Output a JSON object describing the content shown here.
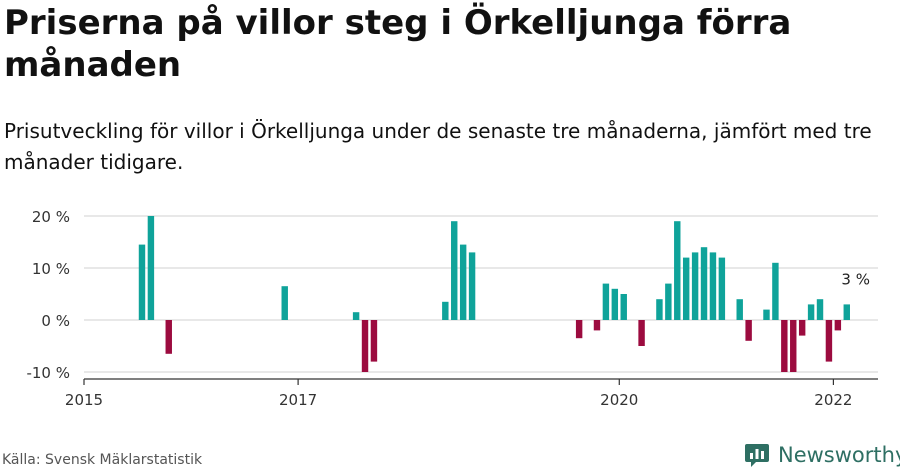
{
  "title": "Priserna på villor steg i Örkelljunga förra månaden",
  "subtitle": "Prisutveckling för villor i Örkelljunga under de senaste tre månaderna, jämfört med tre månader tidigare.",
  "source": "Källa: Svensk Mäklarstatistik",
  "brand": "Newsworthy",
  "colors": {
    "positive": "#0fa39a",
    "negative": "#9c0b3f",
    "grid": "#d9d9d9",
    "axis": "#333333",
    "brand": "#2e6f63"
  },
  "chart_data": {
    "type": "bar",
    "y_tick_labels": [
      "20 %",
      "10 %",
      "0 %",
      "-10 %"
    ],
    "y_ticks": [
      20,
      10,
      0,
      -10
    ],
    "ylim": [
      -10.5,
      20.5
    ],
    "x_tick_labels": [
      "2015",
      "2017",
      "2020",
      "2022"
    ],
    "x_ticks": [
      "2015-01",
      "2017-01",
      "2020-01",
      "2022-01"
    ],
    "xlim": [
      "2015-01",
      "2022-06"
    ],
    "annotation": {
      "text": "3 %",
      "x": "2022-03",
      "value": 3
    },
    "bars": [
      {
        "x": "2015-07",
        "value": 14.5
      },
      {
        "x": "2015-08",
        "value": 20
      },
      {
        "x": "2015-10",
        "value": -6.5
      },
      {
        "x": "2016-11",
        "value": 6.5
      },
      {
        "x": "2017-07",
        "value": 1.5
      },
      {
        "x": "2017-08",
        "value": -10
      },
      {
        "x": "2017-09",
        "value": -8
      },
      {
        "x": "2018-05",
        "value": 3.5
      },
      {
        "x": "2018-06",
        "value": 19
      },
      {
        "x": "2018-07",
        "value": 14.5
      },
      {
        "x": "2018-08",
        "value": 13
      },
      {
        "x": "2019-08",
        "value": -3.5
      },
      {
        "x": "2019-10",
        "value": -2
      },
      {
        "x": "2019-11",
        "value": 7
      },
      {
        "x": "2019-12",
        "value": 6
      },
      {
        "x": "2020-01",
        "value": 5
      },
      {
        "x": "2020-03",
        "value": -5
      },
      {
        "x": "2020-05",
        "value": 4
      },
      {
        "x": "2020-06",
        "value": 7
      },
      {
        "x": "2020-07",
        "value": 19
      },
      {
        "x": "2020-08",
        "value": 12
      },
      {
        "x": "2020-09",
        "value": 13
      },
      {
        "x": "2020-10",
        "value": 14
      },
      {
        "x": "2020-11",
        "value": 13
      },
      {
        "x": "2020-12",
        "value": 12
      },
      {
        "x": "2021-02",
        "value": 4
      },
      {
        "x": "2021-03",
        "value": -4
      },
      {
        "x": "2021-05",
        "value": 2
      },
      {
        "x": "2021-06",
        "value": 11
      },
      {
        "x": "2021-07",
        "value": -10
      },
      {
        "x": "2021-08",
        "value": -10
      },
      {
        "x": "2021-09",
        "value": -3
      },
      {
        "x": "2021-10",
        "value": 3
      },
      {
        "x": "2021-11",
        "value": 4
      },
      {
        "x": "2021-12",
        "value": -8
      },
      {
        "x": "2022-01",
        "value": -2
      },
      {
        "x": "2022-02",
        "value": 3
      }
    ]
  }
}
